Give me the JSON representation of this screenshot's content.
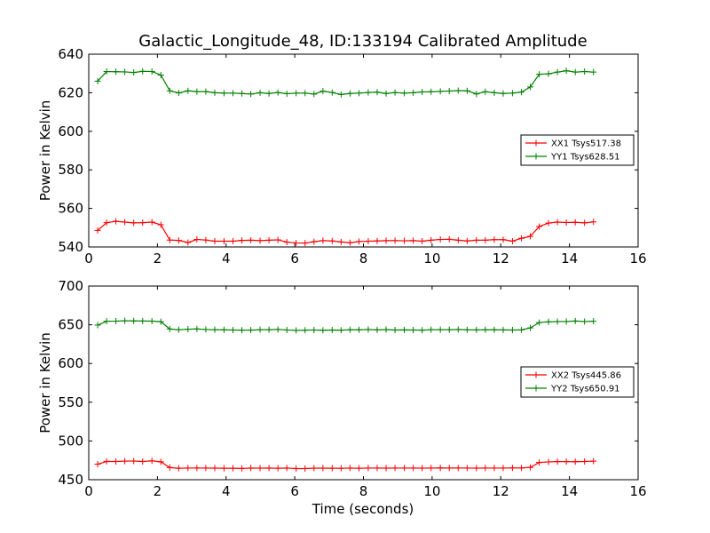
{
  "chart_data": [
    {
      "type": "line",
      "title": "Galactic_Longitude_48, ID:133194 Calibrated Amplitude",
      "xlabel": "",
      "ylabel": "Power in Kelvin",
      "xlim": [
        0,
        16
      ],
      "ylim": [
        540,
        640
      ],
      "xticks": [
        0,
        2,
        4,
        6,
        8,
        10,
        12,
        14,
        16
      ],
      "yticks": [
        540,
        560,
        580,
        600,
        620,
        640
      ],
      "grid": false,
      "legend_position": "right",
      "x": [
        0.26,
        0.52,
        0.79,
        1.05,
        1.31,
        1.57,
        1.84,
        2.1,
        2.36,
        2.62,
        2.89,
        3.15,
        3.41,
        3.67,
        3.94,
        4.2,
        4.46,
        4.72,
        4.99,
        5.25,
        5.51,
        5.77,
        6.04,
        6.3,
        6.56,
        6.82,
        7.09,
        7.35,
        7.61,
        7.87,
        8.14,
        8.4,
        8.66,
        8.92,
        9.19,
        9.45,
        9.71,
        9.97,
        10.24,
        10.5,
        10.76,
        11.02,
        11.29,
        11.55,
        11.81,
        12.07,
        12.34,
        12.6,
        12.86,
        13.12,
        13.39,
        13.65,
        13.91,
        14.17,
        14.44,
        14.7
      ],
      "series": [
        {
          "name": "XX1 Tsys517.38",
          "color": "#ff0000",
          "values": [
            548.6,
            552.6,
            553.3,
            552.9,
            552.5,
            552.6,
            552.9,
            551.5,
            543.6,
            543.4,
            542.3,
            543.9,
            543.6,
            543.0,
            543.0,
            543.0,
            543.4,
            543.5,
            543.3,
            543.5,
            543.7,
            542.5,
            542.1,
            542.0,
            542.7,
            543.3,
            543.1,
            542.6,
            542.2,
            542.8,
            543.0,
            543.1,
            543.3,
            543.3,
            543.2,
            543.3,
            543.0,
            543.5,
            543.9,
            544.0,
            543.5,
            543.1,
            543.5,
            543.5,
            543.8,
            543.8,
            543.0,
            544.5,
            545.5,
            550.6,
            552.4,
            552.9,
            552.7,
            552.8,
            552.5,
            553.0
          ]
        },
        {
          "name": "YY1 Tsys628.51",
          "color": "#008000",
          "values": [
            626.0,
            631.0,
            630.9,
            630.8,
            630.5,
            631.1,
            631.0,
            629.2,
            621.0,
            619.9,
            621.0,
            620.6,
            620.6,
            620.0,
            619.8,
            619.8,
            619.6,
            619.3,
            620.0,
            619.6,
            620.1,
            619.5,
            619.8,
            619.8,
            619.3,
            620.8,
            620.1,
            619.1,
            619.6,
            619.8,
            620.1,
            620.3,
            619.6,
            620.1,
            619.8,
            620.0,
            620.4,
            620.5,
            620.7,
            620.9,
            621.1,
            621.0,
            619.4,
            620.5,
            620.0,
            619.6,
            619.8,
            620.3,
            623.0,
            629.6,
            629.8,
            630.7,
            631.4,
            630.7,
            631.0,
            630.7
          ]
        }
      ]
    },
    {
      "type": "line",
      "title": "",
      "xlabel": "Time (seconds)",
      "ylabel": "Power in Kelvin",
      "xlim": [
        0,
        16
      ],
      "ylim": [
        450,
        700
      ],
      "xticks": [
        0,
        2,
        4,
        6,
        8,
        10,
        12,
        14,
        16
      ],
      "yticks": [
        450,
        500,
        550,
        600,
        650,
        700
      ],
      "grid": false,
      "legend_position": "right",
      "x": [
        0.26,
        0.52,
        0.79,
        1.05,
        1.31,
        1.57,
        1.84,
        2.1,
        2.36,
        2.62,
        2.89,
        3.15,
        3.41,
        3.67,
        3.94,
        4.2,
        4.46,
        4.72,
        4.99,
        5.25,
        5.51,
        5.77,
        6.04,
        6.3,
        6.56,
        6.82,
        7.09,
        7.35,
        7.61,
        7.87,
        8.14,
        8.4,
        8.66,
        8.92,
        9.19,
        9.45,
        9.71,
        9.97,
        10.24,
        10.5,
        10.76,
        11.02,
        11.29,
        11.55,
        11.81,
        12.07,
        12.34,
        12.6,
        12.86,
        13.12,
        13.39,
        13.65,
        13.91,
        14.17,
        14.44,
        14.7
      ],
      "series": [
        {
          "name": "XX2 Tsys445.86",
          "color": "#ff0000",
          "values": [
            470.0,
            473.6,
            473.5,
            474.0,
            474.1,
            473.5,
            474.3,
            473.1,
            465.6,
            464.8,
            465.0,
            465.1,
            465.0,
            464.9,
            464.8,
            464.8,
            464.5,
            465.0,
            464.9,
            465.0,
            464.8,
            465.0,
            464.3,
            464.3,
            464.9,
            464.9,
            464.8,
            464.7,
            465.0,
            464.8,
            465.0,
            465.0,
            464.9,
            465.0,
            465.0,
            465.0,
            464.9,
            465.0,
            465.2,
            465.0,
            465.1,
            465.0,
            464.9,
            465.0,
            465.0,
            465.0,
            465.2,
            465.1,
            465.9,
            472.2,
            473.0,
            473.4,
            473.3,
            473.2,
            473.5,
            474.0
          ]
        },
        {
          "name": "YY2 Tsys650.91",
          "color": "#008000",
          "values": [
            649.5,
            654.5,
            654.7,
            655.2,
            655.0,
            654.9,
            654.7,
            654.0,
            644.5,
            643.6,
            644.3,
            644.6,
            643.9,
            643.6,
            643.5,
            643.2,
            643.0,
            643.1,
            643.6,
            643.7,
            644.0,
            643.3,
            642.7,
            643.0,
            643.3,
            642.8,
            643.2,
            643.0,
            643.6,
            643.5,
            643.9,
            643.4,
            643.8,
            643.2,
            643.4,
            643.2,
            643.0,
            643.6,
            643.7,
            643.6,
            643.9,
            643.5,
            643.4,
            643.6,
            643.5,
            643.4,
            643.2,
            643.4,
            646.0,
            652.9,
            653.8,
            654.1,
            654.2,
            654.8,
            654.2,
            654.6
          ]
        }
      ]
    }
  ]
}
